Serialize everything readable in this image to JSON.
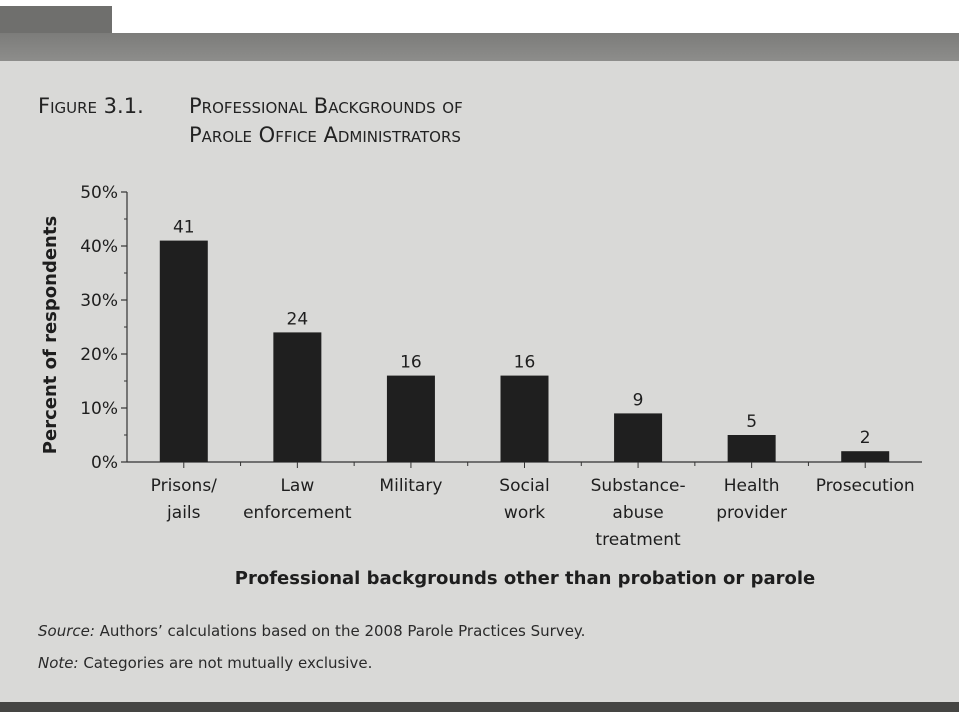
{
  "figure": {
    "prefix": "Figure 3.1.",
    "title_line1": "Professional Backgrounds of",
    "title_line2": "Parole Office Administrators"
  },
  "footnotes": {
    "source_label": "Source:",
    "source_text": " Authors’ calculations based on the 2008 Parole Practices Survey.",
    "note_label": "Note:",
    "note_text": " Categories are not mutually exclusive."
  },
  "chart_data": {
    "type": "bar",
    "title": "Professional Backgrounds of Parole Office Administrators",
    "xlabel": "Professional backgrounds other than probation or parole",
    "ylabel": "Percent of respondents",
    "ylim": [
      0,
      50
    ],
    "yticks": [
      "0%",
      "10%",
      "20%",
      "30%",
      "40%",
      "50%"
    ],
    "categories": [
      [
        "Prisons/",
        "jails"
      ],
      [
        "Law",
        "enforcement"
      ],
      [
        "Military"
      ],
      [
        "Social",
        "work"
      ],
      [
        "Substance-",
        "abuse",
        "treatment"
      ],
      [
        "Health",
        "provider"
      ],
      [
        "Prosecution"
      ]
    ],
    "values": [
      41,
      24,
      16,
      16,
      9,
      5,
      2
    ],
    "bar_color": "#1f1f1f",
    "grid": false
  }
}
